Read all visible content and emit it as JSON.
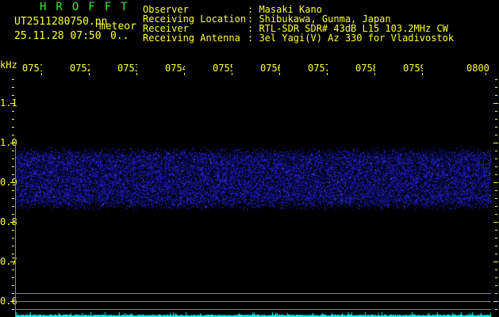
{
  "header": {
    "title": "HROFFT",
    "filename": "UT2511280750.pn",
    "mode": "meteor",
    "datetime": "25.11.28 07:50",
    "counter": "0..",
    "info": [
      {
        "label": "Observer",
        "value": ": Masaki Kano"
      },
      {
        "label": "Receiving Location",
        "value": ": Shibukawa, Gunma, Japan"
      },
      {
        "label": "Receiver",
        "value": ": RTL-SDR SDR# 43dB L15 103.2MHz CW"
      },
      {
        "label": "Receiving Antenna",
        "value": ": 3el Yagi(V) Az 330 for Vladivostok"
      }
    ]
  },
  "axis": {
    "y_unit": "kHz",
    "y_labels": [
      "1.1",
      "1.0",
      "0.9",
      "0.8",
      "0.7",
      "0.6"
    ],
    "time_labels": [
      "0751",
      "0752",
      "0753",
      "0754",
      "0755",
      "0756",
      "0757",
      "0758",
      "0759",
      "0800"
    ]
  },
  "spectrogram": {
    "noise_band_khz": [
      0.83,
      0.99
    ],
    "noise_color": "#2020e0",
    "signal_color": "#00ffff",
    "ref_line_color": "#888888"
  }
}
